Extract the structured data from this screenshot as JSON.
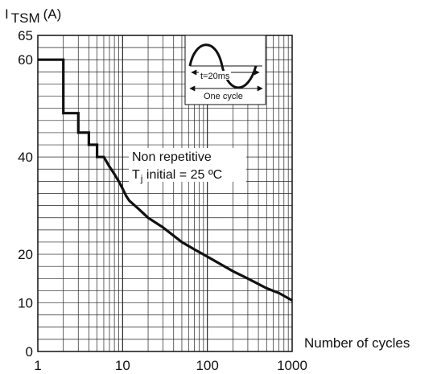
{
  "chart_data": {
    "type": "line",
    "ylabel_main": "I",
    "ylabel_sub": "TSM",
    "ylabel_unit": "(A)",
    "xlabel": "Number of cycles",
    "x_scale": "log",
    "xlim": [
      1,
      1000
    ],
    "ylim": [
      0,
      65
    ],
    "x_tick_labels": [
      "1",
      "10",
      "100",
      "1000"
    ],
    "x_ticks": [
      1,
      10,
      100,
      1000
    ],
    "y_ticks": [
      0,
      10,
      20,
      40,
      60,
      65
    ],
    "y_tick_labels": [
      "0",
      "10",
      "20",
      "40",
      "60",
      "65"
    ],
    "grid": true,
    "series": [
      {
        "name": "",
        "x": [
          1,
          2,
          2,
          3,
          3,
          4,
          4,
          5,
          5,
          6,
          7,
          8,
          9,
          10,
          11,
          12,
          15,
          20,
          30,
          50,
          70,
          100,
          200,
          300,
          500,
          700,
          1000
        ],
        "y": [
          60,
          60,
          49,
          49,
          45,
          45,
          42.5,
          42.5,
          40,
          40,
          38,
          36.5,
          35,
          33.5,
          32,
          31,
          29.5,
          27.5,
          25.5,
          22.5,
          21,
          19.5,
          16.5,
          15,
          13,
          12,
          10.5
        ]
      }
    ],
    "annotation": {
      "line1": "Non repetitive",
      "line2_main": "T",
      "line2_sub": "j",
      "line2_rest": " initial = 25 ºC"
    },
    "inset": {
      "period_label": "t=20ms",
      "cycle_label": "One cycle"
    }
  }
}
